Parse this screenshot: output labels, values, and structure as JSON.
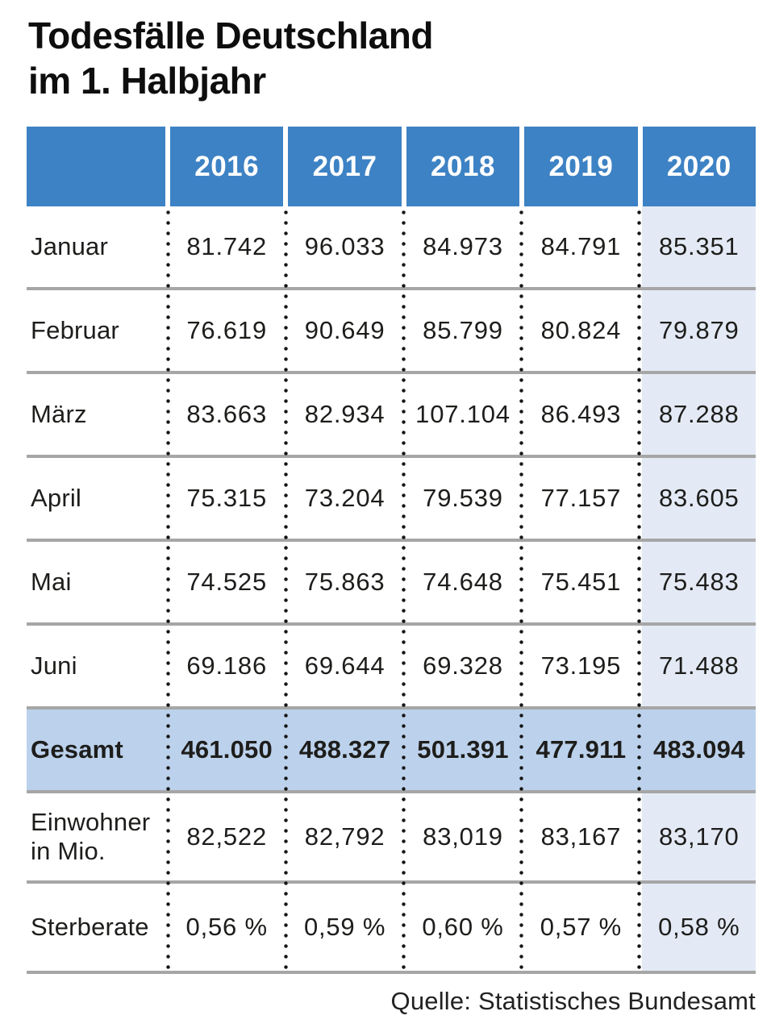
{
  "title": {
    "line1": "Todesfälle Deutschland",
    "line2": "im 1. Halbjahr"
  },
  "source_credit": "Quelle: Statistisches Bundesamt",
  "table": {
    "corner_label": "",
    "years": [
      "2016",
      "2017",
      "2018",
      "2019",
      "2020"
    ],
    "rows": [
      {
        "label": "Januar",
        "values": [
          "81.742",
          "96.033",
          "84.973",
          "84.791",
          "85.351"
        ]
      },
      {
        "label": "Februar",
        "values": [
          "76.619",
          "90.649",
          "85.799",
          "80.824",
          "79.879"
        ]
      },
      {
        "label": "März",
        "values": [
          "83.663",
          "82.934",
          "107.104",
          "86.493",
          "87.288"
        ]
      },
      {
        "label": "April",
        "values": [
          "75.315",
          "73.204",
          "79.539",
          "77.157",
          "83.605"
        ]
      },
      {
        "label": "Mai",
        "values": [
          "74.525",
          "75.863",
          "74.648",
          "75.451",
          "75.483"
        ]
      },
      {
        "label": "Juni",
        "values": [
          "69.186",
          "69.644",
          "69.328",
          "73.195",
          "71.488"
        ]
      },
      {
        "label": "Gesamt",
        "type": "total",
        "values": [
          "461.050",
          "488.327",
          "501.391",
          "477.911",
          "483.094"
        ]
      },
      {
        "label": "Einwohner in Mio.",
        "tall": true,
        "values": [
          "82,522",
          "82,792",
          "83,019",
          "83,167",
          "83,170"
        ]
      },
      {
        "label": "Sterberate",
        "tall": true,
        "values": [
          "0,56 %",
          "0,59 %",
          "0,60 %",
          "0,57 %",
          "0,58 %"
        ]
      }
    ]
  },
  "colors": {
    "header_blue": "#3d82c4",
    "total_row_blue": "#bcd1eb",
    "highlight_column_blue": "#e4eaf5",
    "separator_gray": "#a6a6a6",
    "text_dark": "#1d1d1b"
  },
  "chart_data": {
    "type": "table",
    "title": "Todesfälle Deutschland im 1. Halbjahr",
    "columns": [
      "2016",
      "2017",
      "2018",
      "2019",
      "2020"
    ],
    "highlighted_column": "2020",
    "rows": [
      {
        "label": "Januar",
        "values": [
          81742,
          96033,
          84973,
          84791,
          85351
        ]
      },
      {
        "label": "Februar",
        "values": [
          76619,
          90649,
          85799,
          80824,
          79879
        ]
      },
      {
        "label": "März",
        "values": [
          83663,
          82934,
          107104,
          86493,
          87288
        ]
      },
      {
        "label": "April",
        "values": [
          75315,
          73204,
          79539,
          77157,
          83605
        ]
      },
      {
        "label": "Mai",
        "values": [
          74525,
          75863,
          74648,
          75451,
          75483
        ]
      },
      {
        "label": "Juni",
        "values": [
          69186,
          69644,
          69328,
          73195,
          71488
        ]
      },
      {
        "label": "Gesamt",
        "values": [
          461050,
          488327,
          501391,
          477911,
          483094
        ]
      },
      {
        "label": "Einwohner in Mio.",
        "values": [
          82.522,
          82.792,
          83.019,
          83.167,
          83.17
        ]
      },
      {
        "label": "Sterberate (%)",
        "values": [
          0.56,
          0.59,
          0.6,
          0.57,
          0.58
        ]
      }
    ],
    "source": "Quelle: Statistisches Bundesamt"
  }
}
